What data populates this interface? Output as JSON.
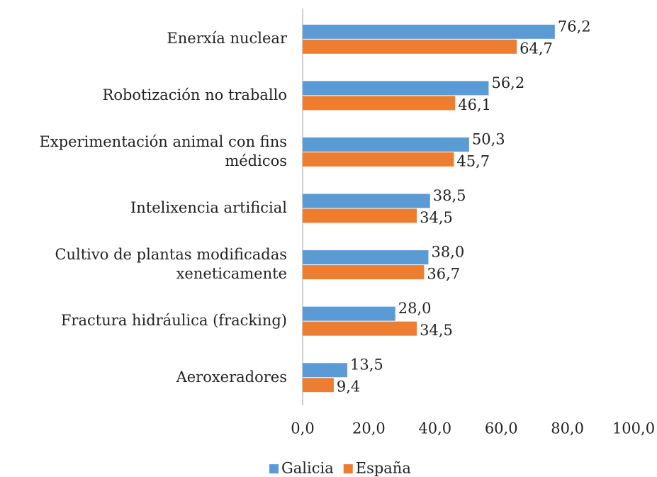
{
  "chart_data": {
    "type": "bar",
    "orientation": "horizontal",
    "categories": [
      "Enerxía nuclear",
      "Robotización no traballo",
      "Experimentación animal con fins médicos",
      "Intelixencia artificial",
      "Cultivo de plantas modificadas xeneticamente",
      "Fractura hidráulica (fracking)",
      "Aeroxeradores"
    ],
    "series": [
      {
        "name": "Galicia",
        "color": "#5b9bd5",
        "values": [
          76.2,
          56.2,
          50.3,
          38.5,
          38.0,
          28.0,
          13.5
        ],
        "value_labels": [
          "76,2",
          "56,2",
          "50,3",
          "38,5",
          "38,0",
          "28,0",
          "13,5"
        ]
      },
      {
        "name": "España",
        "color": "#ed7d31",
        "values": [
          64.7,
          46.1,
          45.7,
          34.5,
          36.7,
          34.5,
          9.4
        ],
        "value_labels": [
          "64,7",
          "46,1",
          "45,7",
          "34,5",
          "36,7",
          "34,5",
          "9,4"
        ]
      }
    ],
    "xlim": [
      0,
      100
    ],
    "xticks": [
      {
        "value": 0,
        "label": "0,0"
      },
      {
        "value": 20,
        "label": "20,0"
      },
      {
        "value": 40,
        "label": "40,0"
      },
      {
        "value": 60,
        "label": "60,0"
      },
      {
        "value": 80,
        "label": "80,0"
      },
      {
        "value": 100,
        "label": "100,0"
      }
    ],
    "legend": "bottom",
    "grid": false
  }
}
